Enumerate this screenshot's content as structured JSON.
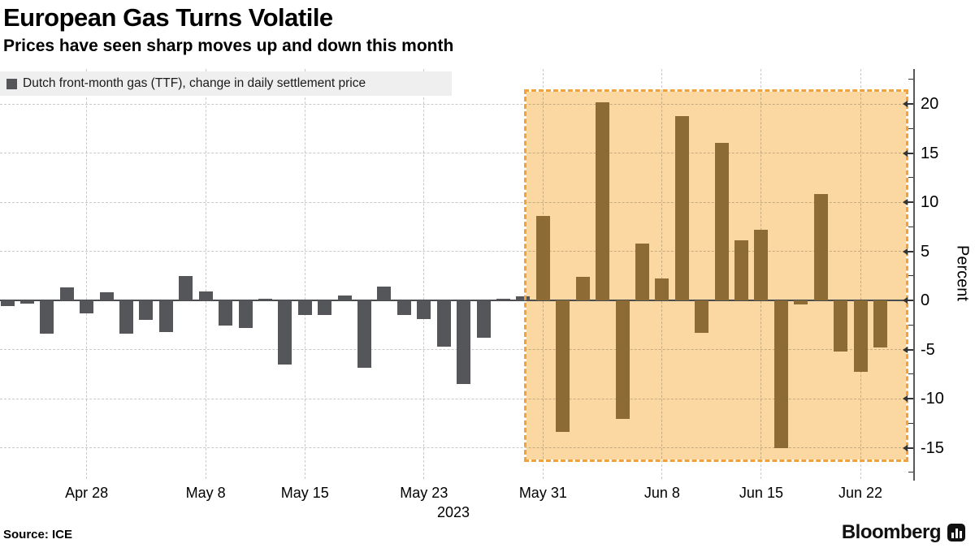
{
  "header": {
    "title": "European Gas Turns Volatile",
    "subtitle": "Prices have seen sharp moves up and down this month"
  },
  "legend": {
    "label": "Dutch front-month gas (TTF), change in daily settlement price",
    "swatch_color": "#54565A"
  },
  "footer": {
    "source": "Source: ICE",
    "brand": "Bloomberg"
  },
  "chart_data": {
    "type": "bar",
    "title": "European Gas Turns Volatile",
    "subtitle": "Prices have seen sharp moves up and down this month",
    "series_name": "Dutch front-month gas (TTF), change in daily settlement price",
    "xlabel": "",
    "ylabel": "Percent",
    "ylim": [
      -17.5,
      22.5
    ],
    "grid": true,
    "legend_position": "top-left",
    "yticks": [
      20,
      15,
      10,
      5,
      0,
      -5,
      -10,
      -15
    ],
    "x_ticks": [
      {
        "label": "Apr 28",
        "category": "Apr 28"
      },
      {
        "label": "May 8",
        "category": "May 8"
      },
      {
        "label": "May 15",
        "category": "May 15"
      },
      {
        "label": "May 23",
        "category": "May 23"
      },
      {
        "label": "May 31",
        "category": "May 31"
      },
      {
        "label": "Jun 8",
        "category": "Jun 8"
      },
      {
        "label": "Jun 15",
        "category": "Jun 15"
      },
      {
        "label": "Jun 22",
        "category": "Jun 22"
      }
    ],
    "year_label": "2023",
    "categories": [
      "Apr 24",
      "Apr 25",
      "Apr 26",
      "Apr 27",
      "Apr 28",
      "May 1",
      "May 2",
      "May 3",
      "May 4",
      "May 5",
      "May 8",
      "May 9",
      "May 10",
      "May 11",
      "May 12",
      "May 15",
      "May 16",
      "May 17",
      "May 18",
      "May 19",
      "May 22",
      "May 23",
      "May 24",
      "May 25",
      "May 26",
      "May 29",
      "May 30",
      "May 31",
      "Jun 1",
      "Jun 2",
      "Jun 5",
      "Jun 6",
      "Jun 7",
      "Jun 8",
      "Jun 9",
      "Jun 12",
      "Jun 13",
      "Jun 14",
      "Jun 15",
      "Jun 16",
      "Jun 19",
      "Jun 20",
      "Jun 21",
      "Jun 22",
      "Jun 23"
    ],
    "values": [
      -0.6,
      -0.3,
      -3.4,
      1.3,
      -1.3,
      0.8,
      -3.4,
      -2.0,
      -3.2,
      2.5,
      0.9,
      -2.6,
      -2.8,
      0.1,
      -6.5,
      -1.5,
      -1.5,
      0.5,
      -6.9,
      1.4,
      -1.5,
      -1.9,
      -4.7,
      -8.5,
      -3.8,
      0.2,
      0.4,
      8.6,
      -13.4,
      2.4,
      20.2,
      -12.1,
      5.8,
      2.2,
      18.8,
      -3.3,
      16.0,
      6.1,
      7.2,
      -15.0,
      -0.4,
      10.8,
      -5.2,
      -7.3,
      -4.8
    ],
    "highlight": {
      "start_category": "May 31",
      "end_category": "Jun 23",
      "fill": "#FBD8A2",
      "border_color": "#F0A33C",
      "border_style": "dashed"
    },
    "colors": {
      "bar": "#54565A",
      "bar_highlighted": "#8D6B35",
      "gridline": "#C9C9C9",
      "zero_line": "#4A4C50"
    }
  }
}
